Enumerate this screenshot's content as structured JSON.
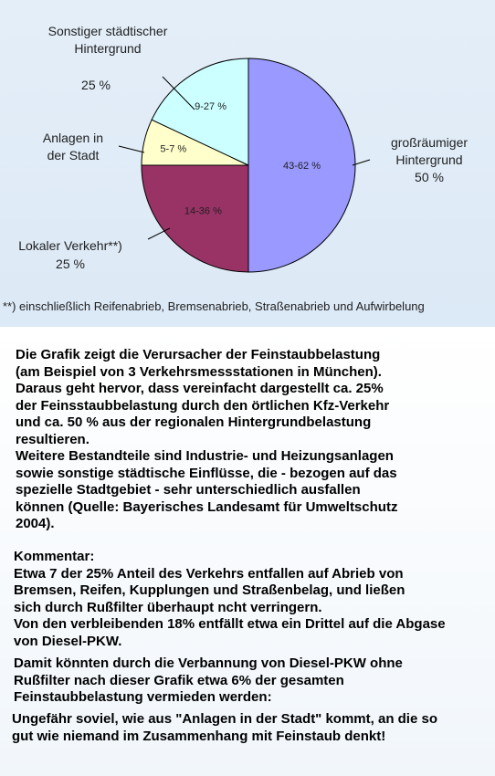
{
  "chart_data": {
    "type": "pie",
    "slices": [
      {
        "label": "großräumiger Hintergrund",
        "share_label": "50 %",
        "inner_label": "43-62 %",
        "value": 50,
        "color": "#9999ff"
      },
      {
        "label": "Lokaler Verkehr**)",
        "share_label": "25 %",
        "inner_label": "14-36 %",
        "value": 25,
        "color": "#993366"
      },
      {
        "label": "Anlagen in der Stadt",
        "share_label": "",
        "inner_label": "5-7 %",
        "value": 7,
        "color": "#ffffcc"
      },
      {
        "label": "Sonstiger städtischer Hintergrund",
        "share_label": "25 %",
        "inner_label": "9-27 %",
        "value": 18,
        "color": "#ccffff"
      }
    ],
    "outer_labels": {
      "background_line1": "großräumiger",
      "background_line2": "Hintergrund",
      "background_pct": "50 %",
      "traffic_line1": "Lokaler Verkehr**)",
      "traffic_pct": "25 %",
      "plants_line1": "Anlagen in",
      "plants_line2": "der Stadt",
      "urban_line1": "Sonstiger städtischer",
      "urban_line2": "Hintergrund",
      "urban_pct": "25 %"
    },
    "footnote": "**) einschließlich Reifenabrieb, Bremsenabrieb, Straßenabrieb und Aufwirbelung"
  },
  "text": {
    "p1": "Die Grafik zeigt die Verursacher der Feinstaubbelastung\n(am Beispiel von 3 Verkehrsmessstationen in München).\nDaraus geht hervor, dass vereinfacht dargestellt ca. 25%\nder Feinsstaubbelastung durch den örtlichen Kfz-Verkehr\nund ca. 50 % aus der regionalen Hintergrundbelastung\nresultieren.\nWeitere Bestandteile sind Industrie- und Heizungsanlagen\nsowie sonstige städtische Einflüsse, die - bezogen auf das\nspezielle Stadtgebiet - sehr unterschiedlich ausfallen\nkönnen (Quelle: Bayerisches Landesamt für Umweltschutz\n2004).",
    "p2": "Kommentar:\nEtwa 7 der  25% Anteil des Verkehrs entfallen auf Abrieb von\nBremsen, Reifen, Kupplungen und Straßenbelag, und ließen\nsich durch Rußfilter überhaupt ncht verringern.\nVon den verbleibenden 18% entfällt etwa ein Drittel auf  die Abgase\nvon Diesel-PKW.",
    "p3": "Damit könnten durch die Verbannung von Diesel-PKW ohne\nRußfilter nach dieser Grafik etwa 6% der gesamten\nFeinstaubbelastung vermieden werden:",
    "p4": "Ungefähr soviel, wie aus \"Anlagen in der Stadt\" kommt, an die so\ngut wie niemand im Zusammenhang mit Feinstaub denkt!"
  }
}
